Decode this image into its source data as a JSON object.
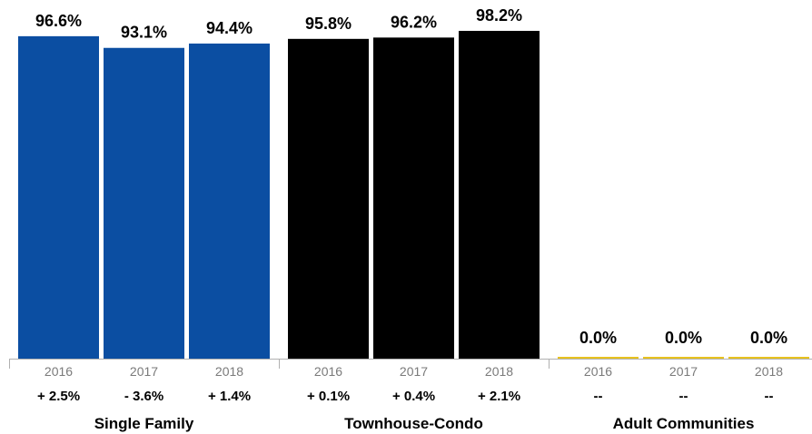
{
  "chart_data": {
    "type": "bar",
    "ylim": [
      0,
      100
    ],
    "groups": [
      {
        "name": "Single Family",
        "color": "#0b4ea2",
        "bars": [
          {
            "year": "2016",
            "value": 96.6,
            "label": "96.6%",
            "change": "+ 2.5%"
          },
          {
            "year": "2017",
            "value": 93.1,
            "label": "93.1%",
            "change": "- 3.6%"
          },
          {
            "year": "2018",
            "value": 94.4,
            "label": "94.4%",
            "change": "+ 1.4%"
          }
        ]
      },
      {
        "name": "Townhouse-Condo",
        "color": "#000000",
        "bars": [
          {
            "year": "2016",
            "value": 95.8,
            "label": "95.8%",
            "change": "+ 0.1%"
          },
          {
            "year": "2017",
            "value": 96.2,
            "label": "96.2%",
            "change": "+ 0.4%"
          },
          {
            "year": "2018",
            "value": 98.2,
            "label": "98.2%",
            "change": "+ 2.1%"
          }
        ]
      },
      {
        "name": "Adult Communities",
        "color": "#e8c21e",
        "bars": [
          {
            "year": "2016",
            "value": 0.0,
            "label": "0.0%",
            "change": "--"
          },
          {
            "year": "2017",
            "value": 0.0,
            "label": "0.0%",
            "change": "--"
          },
          {
            "year": "2018",
            "value": 0.0,
            "label": "0.0%",
            "change": "--"
          }
        ]
      }
    ],
    "axis_color": "#b0b0b0"
  }
}
